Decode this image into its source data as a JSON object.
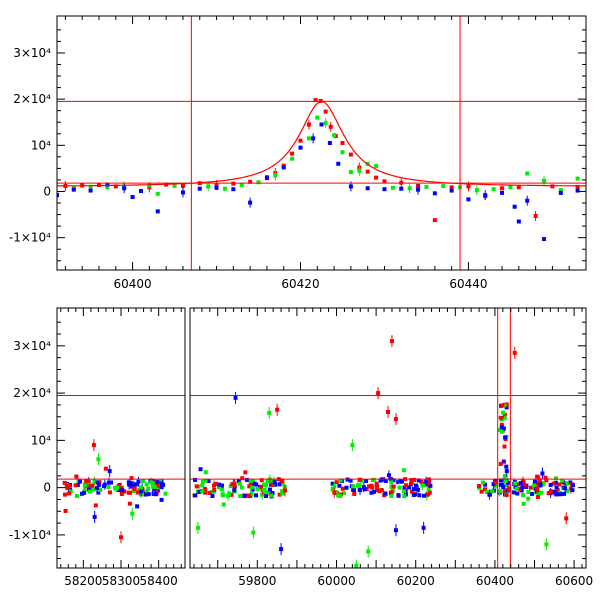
{
  "chart_data": [
    {
      "type": "scatter",
      "title": "",
      "xlabel": "",
      "ylabel": "",
      "xlim": [
        60391,
        60454
      ],
      "ylim": [
        -17000,
        38000
      ],
      "x_ticks": [
        60400,
        60420,
        60440
      ],
      "y_ticks": [
        {
          "value": -10000,
          "label": "-1×10⁴"
        },
        {
          "value": 0,
          "label": "0"
        },
        {
          "value": 10000,
          "label": "10⁴"
        },
        {
          "value": 20000,
          "label": "2×10⁴"
        },
        {
          "value": 30000,
          "label": "3×10⁴"
        }
      ],
      "vlines": [
        60407,
        60439
      ],
      "hlines": [
        19500,
        1800
      ],
      "colors": {
        "red": "#ff0000",
        "green": "#00ee00",
        "blue": "#0000ff",
        "line": "#ff0000"
      },
      "model_curve": {
        "t0": 60422.5,
        "baseline": 1000,
        "peak": 19500,
        "width": 3.3
      },
      "series": [
        {
          "color": "red",
          "points": [
            [
              60392,
              1200
            ],
            [
              60394,
              1300
            ],
            [
              60396,
              1400
            ],
            [
              60398,
              1100
            ],
            [
              60402,
              900
            ],
            [
              60404,
              1500
            ],
            [
              60406,
              1200
            ],
            [
              60408,
              1800
            ],
            [
              60410,
              1400
            ],
            [
              60412,
              1700
            ],
            [
              60414,
              2100
            ],
            [
              60416,
              3100
            ],
            [
              60417,
              4000
            ],
            [
              60418,
              5600
            ],
            [
              60419,
              8200
            ],
            [
              60420,
              11000
            ],
            [
              60421,
              14500
            ],
            [
              60421.8,
              19800
            ],
            [
              60422.4,
              19600
            ],
            [
              60423,
              17300
            ],
            [
              60423.6,
              14000
            ],
            [
              60424.2,
              12000
            ],
            [
              60425,
              10500
            ],
            [
              60426,
              8000
            ],
            [
              60427,
              5200
            ],
            [
              60428,
              4300
            ],
            [
              60429,
              3000
            ],
            [
              60430,
              2200
            ],
            [
              60432,
              1900
            ],
            [
              60434,
              1200
            ],
            [
              60436,
              -6200
            ],
            [
              60438,
              900
            ],
            [
              60440,
              1100
            ],
            [
              60442,
              -1000
            ],
            [
              60444,
              700
            ],
            [
              60446,
              900
            ],
            [
              60448,
              -5300
            ],
            [
              60450,
              1100
            ],
            [
              60453,
              1000
            ]
          ]
        },
        {
          "color": "green",
          "points": [
            [
              60391,
              -700
            ],
            [
              60393,
              800
            ],
            [
              60395,
              1000
            ],
            [
              60397,
              900
            ],
            [
              60399,
              1100
            ],
            [
              60402,
              1300
            ],
            [
              60403,
              -500
            ],
            [
              60405,
              1200
            ],
            [
              60409,
              1100
            ],
            [
              60411,
              600
            ],
            [
              60413,
              1400
            ],
            [
              60415,
              2000
            ],
            [
              60417,
              3500
            ],
            [
              60419,
              7100
            ],
            [
              60421,
              11500
            ],
            [
              60422,
              16000
            ],
            [
              60423,
              14800
            ],
            [
              60424,
              12200
            ],
            [
              60425,
              8500
            ],
            [
              60426,
              4200
            ],
            [
              60427,
              4500
            ],
            [
              60428,
              6000
            ],
            [
              60429,
              5500
            ],
            [
              60431,
              800
            ],
            [
              60433,
              700
            ],
            [
              60435,
              1000
            ],
            [
              60437,
              1200
            ],
            [
              60439,
              900
            ],
            [
              60441,
              300
            ],
            [
              60443,
              500
            ],
            [
              60445,
              900
            ],
            [
              60447,
              3900
            ],
            [
              60449,
              2300
            ],
            [
              60451,
              300
            ],
            [
              60453,
              2800
            ]
          ]
        },
        {
          "color": "blue",
          "points": [
            [
              60391,
              -800
            ],
            [
              60393,
              400
            ],
            [
              60395,
              200
            ],
            [
              60397,
              1500
            ],
            [
              60399,
              700
            ],
            [
              60400,
              -1200
            ],
            [
              60401,
              100
            ],
            [
              60403,
              -4300
            ],
            [
              60406,
              -200
            ],
            [
              60408,
              600
            ],
            [
              60410,
              800
            ],
            [
              60412,
              500
            ],
            [
              60414,
              -2400
            ],
            [
              60416,
              2900
            ],
            [
              60418,
              5200
            ],
            [
              60420,
              9500
            ],
            [
              60421.5,
              11500
            ],
            [
              60422.5,
              14500
            ],
            [
              60423.5,
              10500
            ],
            [
              60424.5,
              6000
            ],
            [
              60426,
              1100
            ],
            [
              60428,
              700
            ],
            [
              60430,
              500
            ],
            [
              60432,
              600
            ],
            [
              60434,
              400
            ],
            [
              60436,
              -400
            ],
            [
              60438,
              200
            ],
            [
              60440,
              -1700
            ],
            [
              60442,
              -800
            ],
            [
              60444,
              -300
            ],
            [
              60445.5,
              -3300
            ],
            [
              60446,
              -6500
            ],
            [
              60447,
              -2000
            ],
            [
              60449,
              -10300
            ],
            [
              60451,
              -300
            ],
            [
              60453,
              200
            ]
          ]
        }
      ]
    },
    {
      "type": "scatter",
      "title": "",
      "xlabel": "",
      "ylabel": "",
      "broken_x_axis": true,
      "segments": [
        {
          "xlim": [
            58130,
            58470
          ],
          "x_ticks": [
            58200,
            58300,
            58400
          ]
        },
        {
          "xlim": [
            59630,
            60630
          ],
          "x_ticks": [
            59800,
            60000,
            60200,
            60400,
            60600
          ]
        }
      ],
      "ylim": [
        -17000,
        38000
      ],
      "y_ticks": [
        {
          "value": -10000,
          "label": "-1×10⁴"
        },
        {
          "value": 0,
          "label": "0"
        },
        {
          "value": 10000,
          "label": "10⁴"
        },
        {
          "value": 20000,
          "label": "2×10⁴"
        },
        {
          "value": 30000,
          "label": "3×10⁴"
        }
      ],
      "vlines": [
        60407,
        60439
      ],
      "hlines": [
        19500,
        1800
      ],
      "colors": {
        "red": "#ff0000",
        "green": "#00ee00",
        "blue": "#0000ff",
        "line": "#ff0000"
      },
      "outliers": [
        {
          "color": "red",
          "points": [
            [
              58228,
              9000
            ],
            [
              58300,
              -10500
            ],
            [
              59850,
              16500
            ],
            [
              59870,
              -600
            ],
            [
              60140,
              31000
            ],
            [
              60105,
              20000
            ],
            [
              60150,
              14500
            ],
            [
              60130,
              16000
            ],
            [
              60450,
              28500
            ],
            [
              60580,
              -6500
            ]
          ]
        },
        {
          "color": "green",
          "points": [
            [
              59830,
              15800
            ],
            [
              59650,
              -8500
            ],
            [
              59790,
              -9500
            ],
            [
              60050,
              -16500
            ],
            [
              60080,
              -13500
            ],
            [
              60040,
              9000
            ],
            [
              60530,
              -12000
            ],
            [
              58240,
              6000
            ],
            [
              58330,
              -5500
            ]
          ]
        },
        {
          "color": "blue",
          "points": [
            [
              59745,
              19000
            ],
            [
              59860,
              -13000
            ],
            [
              60220,
              -8500
            ],
            [
              58270,
              3500
            ],
            [
              58230,
              -6200
            ],
            [
              60520,
              3000
            ],
            [
              60150,
              -9000
            ],
            [
              60430,
              3500
            ]
          ]
        }
      ],
      "clusters": [
        {
          "x_from": 58150,
          "x_to": 58420,
          "spread": 1500
        },
        {
          "x_from": 59640,
          "x_to": 59870,
          "spread": 1800
        },
        {
          "x_from": 59990,
          "x_to": 60240,
          "spread": 1800
        },
        {
          "x_from": 60360,
          "x_to": 60600,
          "spread": 1600
        }
      ]
    }
  ]
}
